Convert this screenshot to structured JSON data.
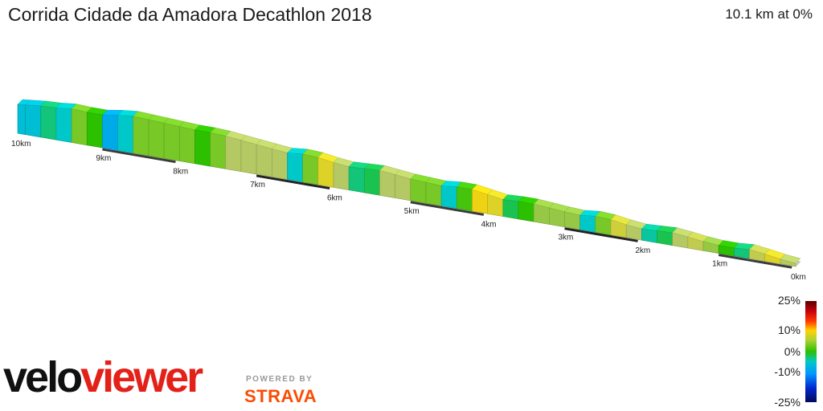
{
  "header": {
    "title": "Corrida Cidade da Amadora Decathlon 2018",
    "stats": "10.1 km at 0%"
  },
  "legend": {
    "labels": [
      "25%",
      "10%",
      "0%",
      "-10%",
      "-25%"
    ]
  },
  "branding": {
    "logo_part1": "velo",
    "logo_part2": "viewer",
    "powered_by": "POWERED BY",
    "strava": "STRAVA"
  },
  "chart_data": {
    "type": "area",
    "title": "Corrida Cidade da Amadora Decathlon 2018",
    "subtitle": "10.1 km at 0%",
    "xlabel": "",
    "ylabel": "",
    "distance_labels": [
      "0km",
      "1km",
      "2km",
      "3km",
      "4km",
      "5km",
      "6km",
      "7km",
      "8km",
      "9km",
      "10km"
    ],
    "gradient_scale": [
      "25%",
      "10%",
      "0%",
      "-10%",
      "-25%"
    ],
    "x": [
      0,
      0.2,
      0.4,
      0.6,
      0.8,
      1.0,
      1.2,
      1.4,
      1.6,
      1.8,
      2.0,
      2.2,
      2.4,
      2.6,
      2.8,
      3.0,
      3.2,
      3.4,
      3.6,
      3.8,
      4.0,
      4.2,
      4.4,
      4.6,
      4.8,
      5.0,
      5.2,
      5.4,
      5.6,
      5.8,
      6.0,
      6.2,
      6.4,
      6.6,
      6.8,
      7.0,
      7.2,
      7.4,
      7.6,
      7.8,
      8.0,
      8.2,
      8.4,
      8.6,
      8.8,
      9.0,
      9.2,
      9.4,
      9.6,
      9.8,
      10.0,
      10.1
    ],
    "y": [
      0,
      4,
      10,
      15,
      12,
      12,
      15,
      20,
      24,
      22,
      20,
      24,
      30,
      32,
      28,
      30,
      33,
      36,
      36,
      34,
      40,
      46,
      46,
      42,
      44,
      46,
      50,
      54,
      52,
      50,
      54,
      60,
      62,
      58,
      62,
      66,
      70,
      74,
      76,
      76,
      78,
      80,
      82,
      84,
      80,
      74,
      74,
      76,
      72,
      70,
      66,
      64
    ],
    "grade": [
      5,
      8,
      6,
      -3,
      0,
      4,
      6,
      5,
      -2,
      -4,
      5,
      7,
      3,
      -5,
      4,
      4,
      4,
      0,
      -2,
      8,
      9,
      1,
      -5,
      3,
      3,
      5,
      5,
      -2,
      -3,
      5,
      8,
      3,
      -5,
      5,
      5,
      5,
      5,
      3,
      0,
      3,
      3,
      3,
      3,
      -5,
      -8,
      0,
      3,
      -5,
      -3,
      -6,
      -6
    ]
  }
}
